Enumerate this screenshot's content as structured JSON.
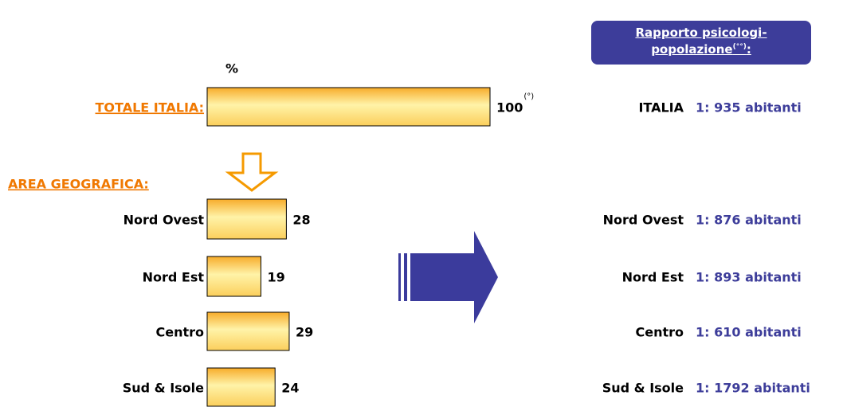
{
  "chart_data": {
    "type": "bar",
    "orientation": "horizontal",
    "unit_label": "%",
    "section_label": "AREA GEOGRAFICA:",
    "categories": [
      "TOTALE ITALIA:",
      "Nord Ovest",
      "Nord Est",
      "Centro",
      "Sud & Isole"
    ],
    "values": [
      100,
      28,
      19,
      29,
      24
    ],
    "total_note": "(°)",
    "xlim": [
      0,
      100
    ],
    "ratio_panel": {
      "title": "Rapporto psicologi-popolazione",
      "title_note": "(°°)",
      "title_end": ":",
      "rows": [
        {
          "area": "ITALIA",
          "ratio": "1: 935 abitanti"
        },
        {
          "area": "Nord Ovest",
          "ratio": "1: 876 abitanti"
        },
        {
          "area": "Nord Est",
          "ratio": "1: 893 abitanti"
        },
        {
          "area": "Centro",
          "ratio": "1: 610 abitanti"
        },
        {
          "area": "Sud & Isole",
          "ratio": "1: 1792 abitanti"
        }
      ]
    }
  }
}
